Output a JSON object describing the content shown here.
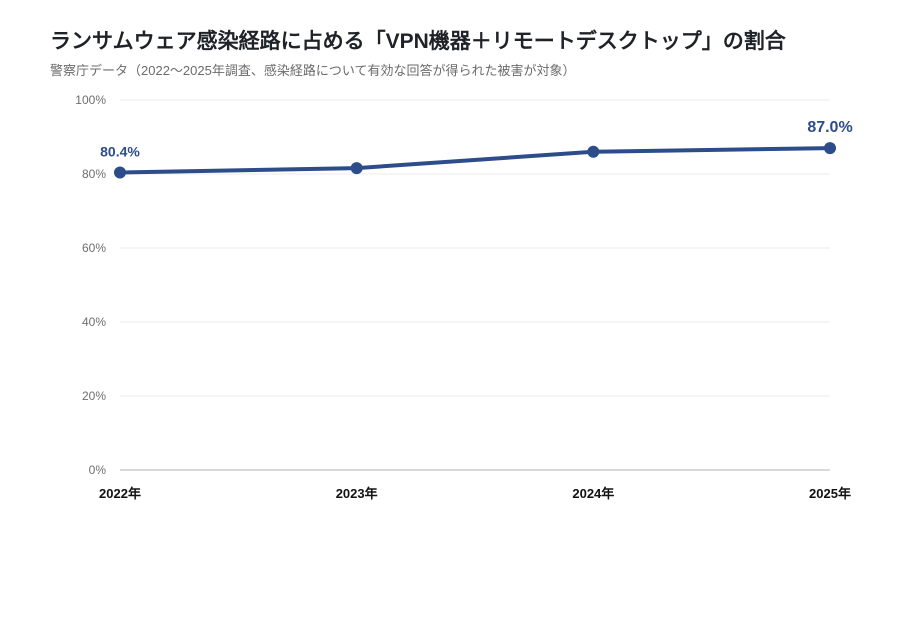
{
  "chart_data": {
    "type": "line",
    "title": "ランサムウェア感染経路に占める「VPN機器＋リモートデスクトップ」の割合",
    "subtitle": "警察庁データ（2022〜2025年調査、感染経路について有効な回答が得られた被害が対象）",
    "categories": [
      "2022年",
      "2023年",
      "2024年",
      "2025年"
    ],
    "series": [
      {
        "values": [
          80.4,
          81.6,
          86.0,
          87.0
        ]
      }
    ],
    "data_labels": [
      {
        "index": 0,
        "text": "80.4%"
      },
      {
        "index": 3,
        "text": "87.0%"
      }
    ],
    "y_ticks": [
      0,
      20,
      40,
      60,
      80,
      100
    ],
    "y_tick_labels": [
      "0%",
      "20%",
      "40%",
      "60%",
      "80%",
      "100%"
    ],
    "ylim": [
      0,
      100
    ],
    "xlabel": "",
    "ylabel": "",
    "grid": "horizontal",
    "legend": "none"
  },
  "colors": {
    "line": "#2c4d8a",
    "data_label": "#2c4d8a",
    "grid": "#ebebeb",
    "axis": "#c2c2c2"
  }
}
